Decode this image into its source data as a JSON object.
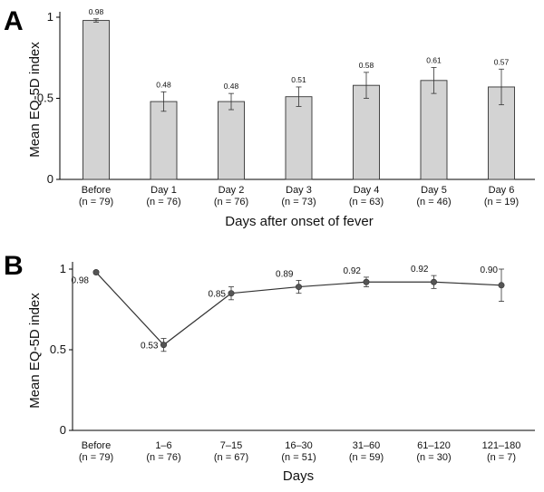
{
  "chart_data": [
    {
      "panel": "A",
      "type": "bar",
      "ylabel": "Mean EQ-5D index",
      "xlabel": "Days after onset of fever",
      "ylim": [
        0,
        1
      ],
      "yticks": [
        "0",
        "0.5",
        "1"
      ],
      "categories": [
        {
          "label": "Before",
          "n": "(n = 79)"
        },
        {
          "label": "Day 1",
          "n": "(n = 76)"
        },
        {
          "label": "Day 2",
          "n": "(n = 76)"
        },
        {
          "label": "Day 3",
          "n": "(n = 73)"
        },
        {
          "label": "Day 4",
          "n": "(n = 63)"
        },
        {
          "label": "Day 5",
          "n": "(n = 46)"
        },
        {
          "label": "Day 6",
          "n": "(n = 19)"
        }
      ],
      "values": [
        0.98,
        0.48,
        0.48,
        0.51,
        0.58,
        0.61,
        0.57
      ],
      "value_labels": [
        "0.98",
        "0.48",
        "0.48",
        "0.51",
        "0.58",
        "0.61",
        "0.57"
      ],
      "error": [
        0.01,
        0.06,
        0.05,
        0.06,
        0.08,
        0.08,
        0.11
      ]
    },
    {
      "panel": "B",
      "type": "line",
      "ylabel": "Mean EQ-5D index",
      "xlabel": "Days",
      "ylim": [
        0,
        1
      ],
      "yticks": [
        "0",
        "0.5",
        "1"
      ],
      "categories": [
        {
          "label": "Before",
          "n": "(n = 79)"
        },
        {
          "label": "1–6",
          "n": "(n = 76)"
        },
        {
          "label": "7–15",
          "n": "(n = 67)"
        },
        {
          "label": "16–30",
          "n": "(n = 51)"
        },
        {
          "label": "31–60",
          "n": "(n = 59)"
        },
        {
          "label": "61–120",
          "n": "(n = 30)"
        },
        {
          "label": "121–180",
          "n": "(n = 7)"
        }
      ],
      "values": [
        0.98,
        0.53,
        0.85,
        0.89,
        0.92,
        0.92,
        0.9
      ],
      "value_labels": [
        "0.98",
        "0.53",
        "0.85",
        "0.89",
        "0.92",
        "0.92",
        "0.90"
      ],
      "error": [
        0.01,
        0.04,
        0.04,
        0.04,
        0.03,
        0.04,
        0.1
      ]
    }
  ]
}
